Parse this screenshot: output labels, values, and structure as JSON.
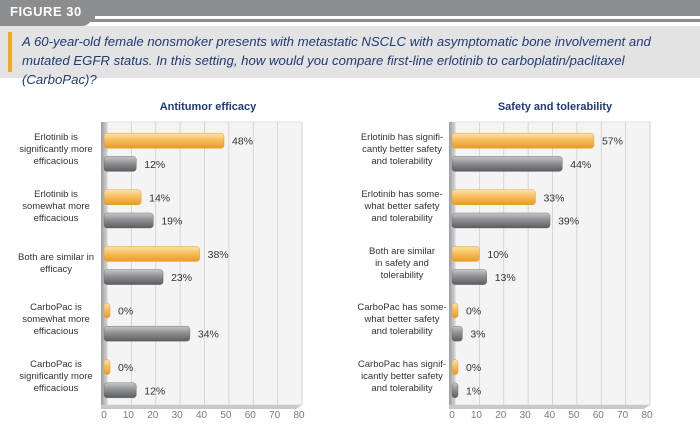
{
  "figure_label": "FIGURE 30",
  "question": "A 60-year-old female nonsmoker presents with metastatic NSCLC with asymptomatic bone involvement and mutated EGFR status. In this setting, how would you compare first-line erlotinib to carboplatin/paclitaxel (CarboPac)?",
  "colors": {
    "header": "#8c8d8f",
    "accent": "#f3a81a",
    "title_blue": "#1f3a74",
    "series_orange": "#f7bf5e",
    "series_gray": "#8f9093"
  },
  "chart_data": [
    {
      "type": "bar",
      "orientation": "horizontal",
      "title": "Antitumor efficacy",
      "categories": [
        "Erlotinib is significantly more efficacious",
        "Erlotinib is somewhat more efficacious",
        "Both are similar in efficacy",
        "CarboPac is somewhat more efficacious",
        "CarboPac is significantly more efficacious"
      ],
      "category_lines": [
        [
          "Erlotinib is",
          "significantly more",
          "efficacious"
        ],
        [
          "Erlotinib is",
          "somewhat more",
          "efficacious"
        ],
        [
          "Both are similar in",
          "efficacy"
        ],
        [
          "CarboPac is",
          "somewhat more",
          "efficacious"
        ],
        [
          "CarboPac is",
          "significantly more",
          "efficacious"
        ]
      ],
      "series": [
        {
          "values": [
            48,
            14,
            38,
            0,
            0
          ],
          "labels": [
            "48%",
            "14%",
            "38%",
            "0%",
            "0%"
          ]
        },
        {
          "values": [
            12,
            19,
            23,
            34,
            12
          ],
          "labels": [
            "12%",
            "19%",
            "23%",
            "34%",
            "12%"
          ]
        }
      ],
      "xlim": [
        0,
        80
      ],
      "ticks": [
        "0",
        "10",
        "20",
        "30",
        "40",
        "50",
        "60",
        "70",
        "80"
      ],
      "grid": true
    },
    {
      "type": "bar",
      "orientation": "horizontal",
      "title": "Safety and tolerability",
      "categories": [
        "Erlotinib has significantly better safety and tolerability",
        "Erlotinib has somewhat better safety and tolerability",
        "Both are similar in safety and tolerability",
        "CarboPac has somewhat better safety and tolerability",
        "CarboPac has significantly better safety and tolerability"
      ],
      "category_lines": [
        [
          "Erlotinib has signifi-",
          "cantly better safety",
          "and tolerability"
        ],
        [
          "Erlotinib has some-",
          "what better safety",
          "and tolerability"
        ],
        [
          "Both are similar",
          "in safety and",
          "tolerability"
        ],
        [
          "CarboPac has some-",
          "what better safety",
          "and tolerability"
        ],
        [
          "CarboPac has signif-",
          "icantly better safety",
          "and tolerability"
        ]
      ],
      "series": [
        {
          "values": [
            57,
            33,
            10,
            0,
            0
          ],
          "labels": [
            "57%",
            "33%",
            "10%",
            "0%",
            "0%"
          ]
        },
        {
          "values": [
            44,
            39,
            13,
            3,
            1
          ],
          "labels": [
            "44%",
            "39%",
            "13%",
            "3%",
            "1%"
          ]
        }
      ],
      "xlim": [
        0,
        80
      ],
      "ticks": [
        "0",
        "10",
        "20",
        "30",
        "40",
        "50",
        "60",
        "70",
        "80"
      ],
      "grid": true
    }
  ]
}
